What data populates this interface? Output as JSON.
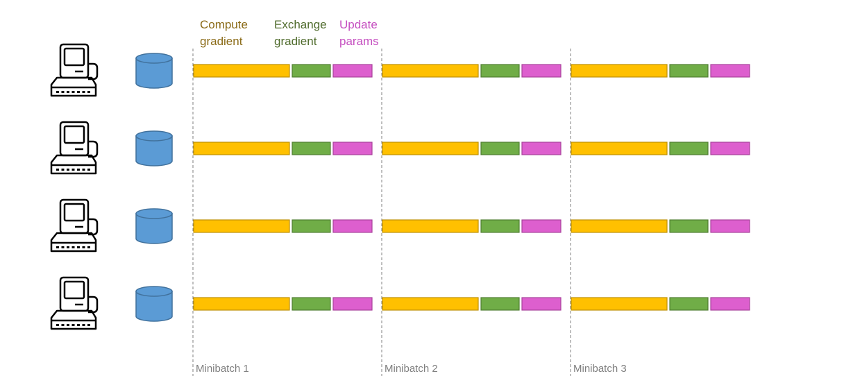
{
  "legend": [
    {
      "label": "Compute\ngradient",
      "color": "#8a6a16"
    },
    {
      "label": "Exchange\ngradient",
      "color": "#4f6b2c"
    },
    {
      "label": "Update\nparams",
      "color": "#c54fc0"
    }
  ],
  "minibatches": [
    "Minibatch 1",
    "Minibatch 2",
    "Minibatch 3"
  ],
  "workers": 4,
  "icons": {
    "machine": "computer-icon",
    "data": "database-icon"
  },
  "colors": {
    "compute_fill": "#ffc000",
    "compute_stroke": "#bf9000",
    "exchange_fill": "#70ad47",
    "exchange_stroke": "#507e32",
    "update_fill": "#dd5fce",
    "update_stroke": "#a8429b",
    "database_fill": "#5b9bd5",
    "database_stroke": "#41719c",
    "divider": "#7f7f7f"
  }
}
